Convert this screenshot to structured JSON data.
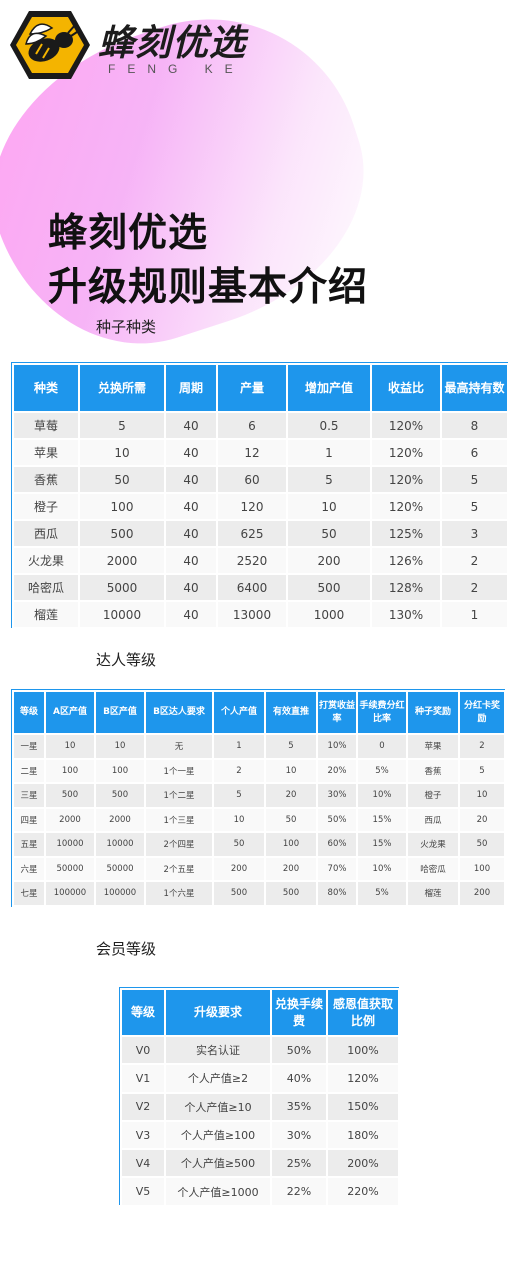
{
  "brand": {
    "name": "蜂刻优选",
    "subtitle": "FENG KE",
    "logo_icon": "bee-logo-icon",
    "colors": {
      "hex": "#f4b400",
      "table_header": "#1e96ec",
      "blob": "#ff9ff0"
    }
  },
  "title": {
    "line1": "蜂刻优选",
    "line2": "升级规则基本介绍"
  },
  "seeds": {
    "label": "种子种类",
    "headers": [
      "种类",
      "兑换所需",
      "周期",
      "产量",
      "增加产值",
      "收益比",
      "最高持有数"
    ],
    "rows": [
      [
        "草莓",
        "5",
        "40",
        "6",
        "0.5",
        "120%",
        "8"
      ],
      [
        "苹果",
        "10",
        "40",
        "12",
        "1",
        "120%",
        "6"
      ],
      [
        "香蕉",
        "50",
        "40",
        "60",
        "5",
        "120%",
        "5"
      ],
      [
        "橙子",
        "100",
        "40",
        "120",
        "10",
        "120%",
        "5"
      ],
      [
        "西瓜",
        "500",
        "40",
        "625",
        "50",
        "125%",
        "3"
      ],
      [
        "火龙果",
        "2000",
        "40",
        "2520",
        "200",
        "126%",
        "2"
      ],
      [
        "哈密瓜",
        "5000",
        "40",
        "6400",
        "500",
        "128%",
        "2"
      ],
      [
        "榴莲",
        "10000",
        "40",
        "13000",
        "1000",
        "130%",
        "1"
      ]
    ]
  },
  "experts": {
    "label": "达人等级",
    "headers": [
      "等级",
      "A区产值",
      "B区产值",
      "B区达人要求",
      "个人产值",
      "有效直推",
      "打赏收益率",
      "手续费分红比率",
      "种子奖励",
      "分红卡奖励"
    ],
    "rows": [
      [
        "一星",
        "10",
        "10",
        "无",
        "1",
        "5",
        "10%",
        "0",
        "苹果",
        "2"
      ],
      [
        "二星",
        "100",
        "100",
        "1个一星",
        "2",
        "10",
        "20%",
        "5%",
        "香蕉",
        "5"
      ],
      [
        "三星",
        "500",
        "500",
        "1个二星",
        "5",
        "20",
        "30%",
        "10%",
        "橙子",
        "10"
      ],
      [
        "四星",
        "2000",
        "2000",
        "1个三星",
        "10",
        "50",
        "50%",
        "15%",
        "西瓜",
        "20"
      ],
      [
        "五星",
        "10000",
        "10000",
        "2个四星",
        "50",
        "100",
        "60%",
        "15%",
        "火龙果",
        "50"
      ],
      [
        "六星",
        "50000",
        "50000",
        "2个五星",
        "200",
        "200",
        "70%",
        "10%",
        "哈密瓜",
        "100"
      ],
      [
        "七星",
        "100000",
        "100000",
        "1个六星",
        "500",
        "500",
        "80%",
        "5%",
        "榴莲",
        "200"
      ]
    ]
  },
  "members": {
    "label": "会员等级",
    "headers": [
      "等级",
      "升级要求",
      "兑换手续费",
      "感恩值获取比例"
    ],
    "rows": [
      [
        "V0",
        "实名认证",
        "50%",
        "100%"
      ],
      [
        "V1",
        "个人产值≥2",
        "40%",
        "120%"
      ],
      [
        "V2",
        "个人产值≥10",
        "35%",
        "150%"
      ],
      [
        "V3",
        "个人产值≥100",
        "30%",
        "180%"
      ],
      [
        "V4",
        "个人产值≥500",
        "25%",
        "200%"
      ],
      [
        "V5",
        "个人产值≥1000",
        "22%",
        "220%"
      ]
    ]
  }
}
